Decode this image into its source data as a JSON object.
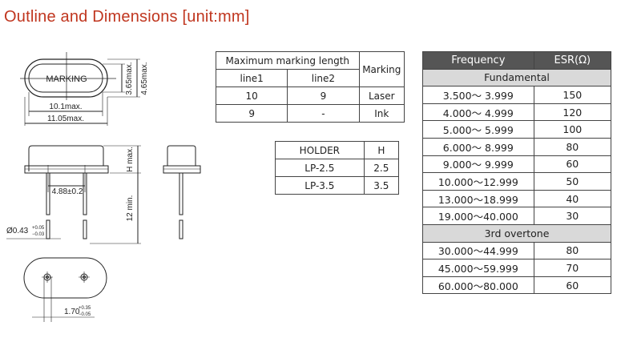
{
  "title": "Outline and Dimensions [unit:mm]",
  "drawing": {
    "marking": "MARKING",
    "dim_365": "3.65max.",
    "dim_465": "4.65max.",
    "dim_101": "10.1max.",
    "dim_1105": "11.05max.",
    "dim_h": "H max.",
    "dim_pitch": "4.88±0.2",
    "dim_lead": "12 min.",
    "dim_dia": "Ø0.43",
    "dia_tol_plus": "+0.05",
    "dia_tol_minus": "−0.03",
    "dim_170": "1.70",
    "tol170_plus": "+0.35",
    "tol170_minus": "−0.05"
  },
  "marking_table": {
    "header": "Maximum marking length",
    "marking_col": "Marking",
    "sub": [
      "line1",
      "line2"
    ],
    "rows": [
      [
        "10",
        "9",
        "Laser"
      ],
      [
        "9",
        "-",
        "Ink"
      ]
    ]
  },
  "holder_table": {
    "headers": [
      "HOLDER",
      "H"
    ],
    "rows": [
      [
        "LP-2.5",
        "2.5"
      ],
      [
        "LP-3.5",
        "3.5"
      ]
    ]
  },
  "esr_table": {
    "headers": [
      "Frequency",
      "ESR(Ω)"
    ],
    "sections": [
      {
        "label": "Fundamental",
        "rows": [
          [
            "3.500〜 3.999",
            "150"
          ],
          [
            "4.000〜 4.999",
            "120"
          ],
          [
            "5.000〜 5.999",
            "100"
          ],
          [
            "6.000〜 8.999",
            "80"
          ],
          [
            "9.000〜 9.999",
            "60"
          ],
          [
            "10.000〜12.999",
            "50"
          ],
          [
            "13.000〜18.999",
            "40"
          ],
          [
            "19.000〜40.000",
            "30"
          ]
        ]
      },
      {
        "label": "3rd overtone",
        "rows": [
          [
            "30.000〜44.999",
            "80"
          ],
          [
            "45.000〜59.999",
            "70"
          ],
          [
            "60.000〜80.000",
            "60"
          ]
        ]
      }
    ]
  }
}
